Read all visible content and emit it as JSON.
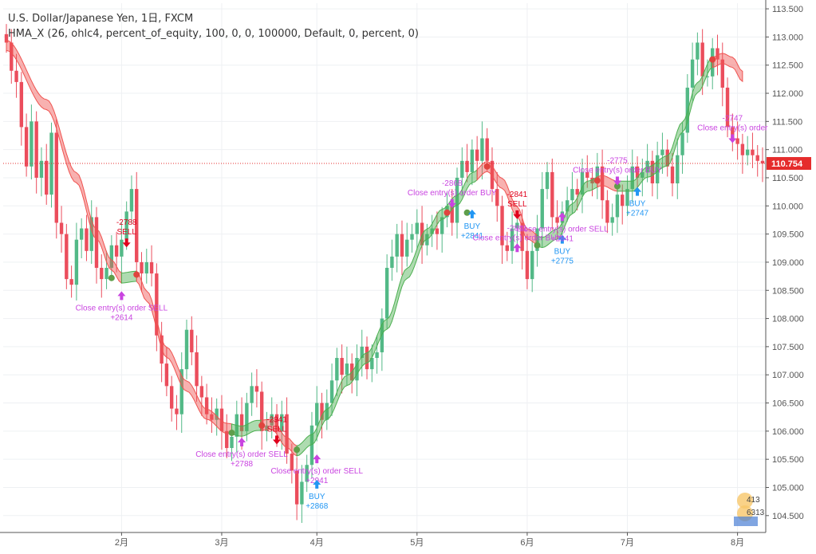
{
  "legend": {
    "title": "U.S. Dollar/Japanese Yen, 1日, FXCM",
    "study": "HMA_X (26, ohlc4, percent_of_equity, 100, 0, 0, 100000, Default, 0, percent, 0)"
  },
  "chart_data": {
    "type": "candlestick",
    "symbol": "U.S. Dollar/Japanese Yen",
    "ylim": [
      104.2,
      113.6
    ],
    "y_ticks": [
      "113.500",
      "113.000",
      "112.500",
      "112.000",
      "111.500",
      "111.000",
      "110.500",
      "110.000",
      "109.500",
      "109.000",
      "108.500",
      "108.000",
      "107.500",
      "107.000",
      "106.500",
      "106.000",
      "105.500",
      "105.000",
      "104.500"
    ],
    "x_ticks": [
      {
        "label": "2月",
        "index": 23
      },
      {
        "label": "3月",
        "index": 43
      },
      {
        "label": "4月",
        "index": 62
      },
      {
        "label": "5月",
        "index": 82
      },
      {
        "label": "6月",
        "index": 104
      },
      {
        "label": "7月",
        "index": 124
      },
      {
        "label": "8月",
        "index": 146
      }
    ],
    "last_price": "110.754",
    "colors": {
      "up": "#53b987",
      "down": "#eb4d5c",
      "band_up": "#4caf50",
      "band_down": "#ef5350",
      "buy": "#2196f3",
      "sell": "#e0001c",
      "close": "#c944e0",
      "last": "#e52c2c"
    },
    "close_prices": [
      112.9,
      112.4,
      112.2,
      111.4,
      110.7,
      111.5,
      110.5,
      110.8,
      110.2,
      111.3,
      109.7,
      109.5,
      108.7,
      108.6,
      109.4,
      109.6,
      109.2,
      109.8,
      108.9,
      108.7,
      108.9,
      109.3,
      109.1,
      109.4,
      109.9,
      110.3,
      109.0,
      108.8,
      109.0,
      108.8,
      107.7,
      107.2,
      106.8,
      106.4,
      106.3,
      107.1,
      107.8,
      107.4,
      106.8,
      106.6,
      106.3,
      106.2,
      106.4,
      106.0,
      105.7,
      105.9,
      106.3,
      106.0,
      106.5,
      106.8,
      106.7,
      106.0,
      106.1,
      106.3,
      106.0,
      106.3,
      105.6,
      105.3,
      104.7,
      105.1,
      105.4,
      106.1,
      106.5,
      106.2,
      106.5,
      106.9,
      107.3,
      107.0,
      107.2,
      106.9,
      107.3,
      107.5,
      107.1,
      107.3,
      107.4,
      108.0,
      108.9,
      109.1,
      109.5,
      109.1,
      109.4,
      109.5,
      109.7,
      109.3,
      109.5,
      109.6,
      109.5,
      109.8,
      110.0,
      109.7,
      110.5,
      110.8,
      110.6,
      111.0,
      110.8,
      111.2,
      110.8,
      110.3,
      110.0,
      109.3,
      109.2,
      109.6,
      109.7,
      109.2,
      108.7,
      109.2,
      109.6,
      110.3,
      110.6,
      109.8,
      109.7,
      109.9,
      110.1,
      110.3,
      110.2,
      110.6,
      110.5,
      110.4,
      110.7,
      110.1,
      109.7,
      109.8,
      110.2,
      110.0,
      110.3,
      110.7,
      110.5,
      110.6,
      110.8,
      110.4,
      110.9,
      111.0,
      110.7,
      110.4,
      110.9,
      111.3,
      112.1,
      112.6,
      112.9,
      112.3,
      112.3,
      112.8,
      112.6,
      112.1,
      111.4,
      111.2,
      111.1,
      110.9,
      111.0,
      110.9,
      110.8,
      110.754
    ],
    "hma_band": [
      {
        "i": 0,
        "v": 112.85
      },
      {
        "i": 8,
        "v": 111.8
      },
      {
        "i": 14,
        "v": 110.5
      },
      {
        "i": 18,
        "v": 109.5
      },
      {
        "i": 21,
        "v": 108.95
      },
      {
        "i": 23,
        "v": 108.72
      },
      {
        "i": 26,
        "v": 108.75
      },
      {
        "i": 28,
        "v": 108.4
      },
      {
        "i": 32,
        "v": 107.4
      },
      {
        "i": 36,
        "v": 106.8
      },
      {
        "i": 40,
        "v": 106.3
      },
      {
        "i": 44,
        "v": 106.05
      },
      {
        "i": 47,
        "v": 106.0
      },
      {
        "i": 50,
        "v": 106.1
      },
      {
        "i": 53,
        "v": 106.12
      },
      {
        "i": 56,
        "v": 105.8
      },
      {
        "i": 58,
        "v": 105.65
      },
      {
        "i": 61,
        "v": 105.85
      },
      {
        "i": 64,
        "v": 106.3
      },
      {
        "i": 68,
        "v": 106.9
      },
      {
        "i": 72,
        "v": 107.3
      },
      {
        "i": 76,
        "v": 107.9
      },
      {
        "i": 80,
        "v": 108.8
      },
      {
        "i": 84,
        "v": 109.5
      },
      {
        "i": 87,
        "v": 109.85
      },
      {
        "i": 90,
        "v": 110.1
      },
      {
        "i": 93,
        "v": 110.5
      },
      {
        "i": 96,
        "v": 110.7
      },
      {
        "i": 99,
        "v": 110.4
      },
      {
        "i": 102,
        "v": 109.9
      },
      {
        "i": 104,
        "v": 109.5
      },
      {
        "i": 107,
        "v": 109.35
      },
      {
        "i": 110,
        "v": 109.5
      },
      {
        "i": 113,
        "v": 109.95
      },
      {
        "i": 116,
        "v": 110.35
      },
      {
        "i": 119,
        "v": 110.45
      },
      {
        "i": 122,
        "v": 110.35
      },
      {
        "i": 125,
        "v": 110.35
      },
      {
        "i": 128,
        "v": 110.6
      },
      {
        "i": 132,
        "v": 110.8
      },
      {
        "i": 135,
        "v": 111.4
      },
      {
        "i": 138,
        "v": 112.1
      },
      {
        "i": 141,
        "v": 112.55
      },
      {
        "i": 143,
        "v": 112.62
      },
      {
        "i": 145,
        "v": 112.55
      },
      {
        "i": 147,
        "v": 112.3
      }
    ],
    "band_color_segments": [
      {
        "from": 0,
        "to": 23,
        "trend": "down"
      },
      {
        "from": 23,
        "to": 26,
        "trend": "up"
      },
      {
        "from": 26,
        "to": 45,
        "trend": "down"
      },
      {
        "from": 45,
        "to": 51,
        "trend": "up"
      },
      {
        "from": 51,
        "to": 58,
        "trend": "down"
      },
      {
        "from": 58,
        "to": 94,
        "trend": "up"
      },
      {
        "from": 94,
        "to": 106,
        "trend": "down"
      },
      {
        "from": 106,
        "to": 118,
        "trend": "up"
      },
      {
        "from": 118,
        "to": 122,
        "trend": "down"
      },
      {
        "from": 122,
        "to": 141,
        "trend": "up"
      },
      {
        "from": 141,
        "to": 147,
        "trend": "down"
      }
    ],
    "cross_points": [
      {
        "i": 21,
        "v": 108.72,
        "type": "up"
      },
      {
        "i": 26,
        "v": 108.78,
        "type": "down"
      },
      {
        "i": 45,
        "v": 105.97,
        "type": "up"
      },
      {
        "i": 51,
        "v": 106.1,
        "type": "down"
      },
      {
        "i": 58,
        "v": 105.67,
        "type": "up"
      },
      {
        "i": 88,
        "v": 109.88,
        "type": "down"
      },
      {
        "i": 92,
        "v": 109.88,
        "type": "up"
      },
      {
        "i": 96,
        "v": 110.7,
        "type": "down"
      },
      {
        "i": 106,
        "v": 109.3,
        "type": "up"
      },
      {
        "i": 118,
        "v": 110.45,
        "type": "down"
      },
      {
        "i": 122,
        "v": 110.35,
        "type": "up"
      },
      {
        "i": 141,
        "v": 112.6,
        "type": "down"
      }
    ],
    "signals": [
      {
        "i": 24,
        "v": 109.35,
        "kind": "sell",
        "arrow": "down",
        "lines": [
          "-2788",
          "SELL"
        ],
        "label_above": true
      },
      {
        "i": 23,
        "v": 108.4,
        "kind": "close",
        "arrow": "up",
        "lines": [
          "Close entry(s) order SELL",
          "+2614"
        ],
        "label_above": false
      },
      {
        "i": 54,
        "v": 105.85,
        "kind": "sell",
        "arrow": "down",
        "lines": [
          "-2941",
          "SELL"
        ],
        "label_above": true
      },
      {
        "i": 47,
        "v": 105.8,
        "kind": "close",
        "arrow": "up",
        "lines": [
          "Close entry(s) order SELL",
          "+2788"
        ],
        "label_above": false
      },
      {
        "i": 62,
        "v": 105.5,
        "kind": "close",
        "arrow": "up",
        "lines": [
          "Close entry(s) order SELL",
          "+2941"
        ],
        "label_above": false
      },
      {
        "i": 62,
        "v": 105.05,
        "kind": "buy",
        "arrow": "up",
        "lines": [
          "BUY",
          "+2868"
        ],
        "label_above": false
      },
      {
        "i": 89,
        "v": 110.05,
        "kind": "close",
        "arrow": "down",
        "lines": [
          "-2868",
          "Close entry(s) order BUY"
        ],
        "label_above": true
      },
      {
        "i": 93,
        "v": 109.85,
        "kind": "buy",
        "arrow": "up",
        "lines": [
          "BUY",
          "+2841"
        ],
        "label_above": false
      },
      {
        "i": 102,
        "v": 109.85,
        "kind": "sell",
        "arrow": "down",
        "lines": [
          "-2841",
          "SELL"
        ],
        "label_above": true
      },
      {
        "i": 102,
        "v": 109.25,
        "kind": "close",
        "arrow": "up",
        "lines": [
          "-2841",
          "Close entry(s) order BUY"
        ],
        "label_above": true
      },
      {
        "i": 111,
        "v": 109.4,
        "kind": "buy",
        "arrow": "up",
        "lines": [
          "BUY",
          "+2775"
        ],
        "label_above": false
      },
      {
        "i": 111,
        "v": 109.8,
        "kind": "close",
        "arrow": "up",
        "lines": [
          "Close entry(s) order SELL",
          "+2841"
        ],
        "label_above": false
      },
      {
        "i": 122,
        "v": 110.45,
        "kind": "close",
        "arrow": "down",
        "lines": [
          "-2775",
          "Close entry(s) order BUY"
        ],
        "label_above": true
      },
      {
        "i": 126,
        "v": 110.25,
        "kind": "buy",
        "arrow": "up",
        "lines": [
          "BUY",
          "+2747"
        ],
        "label_above": false
      },
      {
        "i": 145,
        "v": 111.2,
        "kind": "close",
        "arrow": "down",
        "lines": [
          "-2747",
          "Close entry(s) order"
        ],
        "label_above": true
      }
    ],
    "corner_badge": [
      "413",
      "6313"
    ]
  }
}
